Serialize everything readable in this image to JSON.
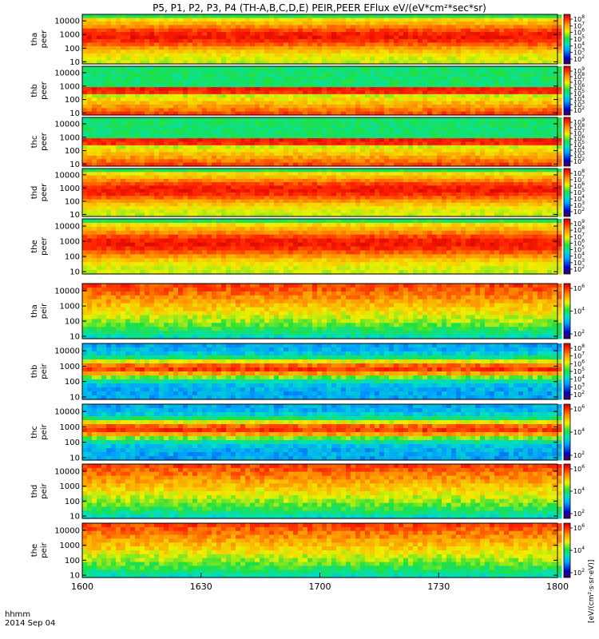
{
  "chart_data": {
    "type": "heatmap",
    "title": "P5, P1, P2, P3, P4 (TH-A,B,C,D,E) PEIR,PEER EFlux eV/(eV*cm²*sec*sr)",
    "x": {
      "tick_labels": [
        "1600",
        "1630",
        "1700",
        "1730",
        "1800"
      ],
      "range": [
        "16:00",
        "18:00"
      ],
      "label_line1": "hhmm",
      "label_line2": "2014 Sep 04"
    },
    "y": {
      "scale": "log",
      "range_eV": [
        7,
        30000
      ],
      "tick_labels": [
        "10",
        "100",
        "1000",
        "10000"
      ]
    },
    "colorbar": {
      "scale": "log",
      "label": "[eV/(cm2-s-sr-eV)]",
      "label_rotated": "[eV/(cm²·s·sr·eV)]"
    },
    "panels": [
      {
        "probe": "tha",
        "species": "peer",
        "label_top": "tha",
        "label_bottom": "peer",
        "cbar_ticks": [
          "10^8",
          "10^7",
          "10^6",
          "10^5",
          "10^4",
          "10^3",
          "10^2"
        ]
      },
      {
        "probe": "thb",
        "species": "peer",
        "label_top": "thb",
        "label_bottom": "peer",
        "cbar_ticks": [
          "10^9",
          "10^8",
          "10^7",
          "10^6",
          "10^5",
          "10^4",
          "10^3",
          "10^2"
        ]
      },
      {
        "probe": "thc",
        "species": "peer",
        "label_top": "thc",
        "label_bottom": "peer",
        "cbar_ticks": [
          "10^9",
          "10^8",
          "10^7",
          "10^6",
          "10^5",
          "10^4",
          "10^3",
          "10^2"
        ]
      },
      {
        "probe": "thd",
        "species": "peer",
        "label_top": "thd",
        "label_bottom": "peer",
        "cbar_ticks": [
          "10^8",
          "10^7",
          "10^6",
          "10^5",
          "10^4",
          "10^3",
          "10^2"
        ]
      },
      {
        "probe": "the",
        "species": "peer",
        "label_top": "the",
        "label_bottom": "peer",
        "cbar_ticks": [
          "10^9",
          "10^8",
          "10^7",
          "10^6",
          "10^5",
          "10^4",
          "10^3",
          "10^2"
        ]
      },
      {
        "probe": "tha",
        "species": "peir",
        "label_top": "tha",
        "label_bottom": "peir",
        "cbar_ticks": [
          "10^6",
          "10^4",
          "10^2"
        ]
      },
      {
        "probe": "thb",
        "species": "peir",
        "label_top": "thb",
        "label_bottom": "peir",
        "cbar_ticks": [
          "10^8",
          "10^7",
          "10^6",
          "10^5",
          "10^4",
          "10^3",
          "10^2"
        ]
      },
      {
        "probe": "thc",
        "species": "peir",
        "label_top": "thc",
        "label_bottom": "peir",
        "cbar_ticks": [
          "10^6",
          "10^4",
          "10^2"
        ]
      },
      {
        "probe": "thd",
        "species": "peir",
        "label_top": "thd",
        "label_bottom": "peir",
        "cbar_ticks": [
          "10^6",
          "10^4",
          "10^2"
        ]
      },
      {
        "probe": "the",
        "species": "peir",
        "label_top": "the",
        "label_bottom": "peir",
        "cbar_ticks": [
          "10^6",
          "10^4",
          "10^2"
        ]
      }
    ]
  }
}
